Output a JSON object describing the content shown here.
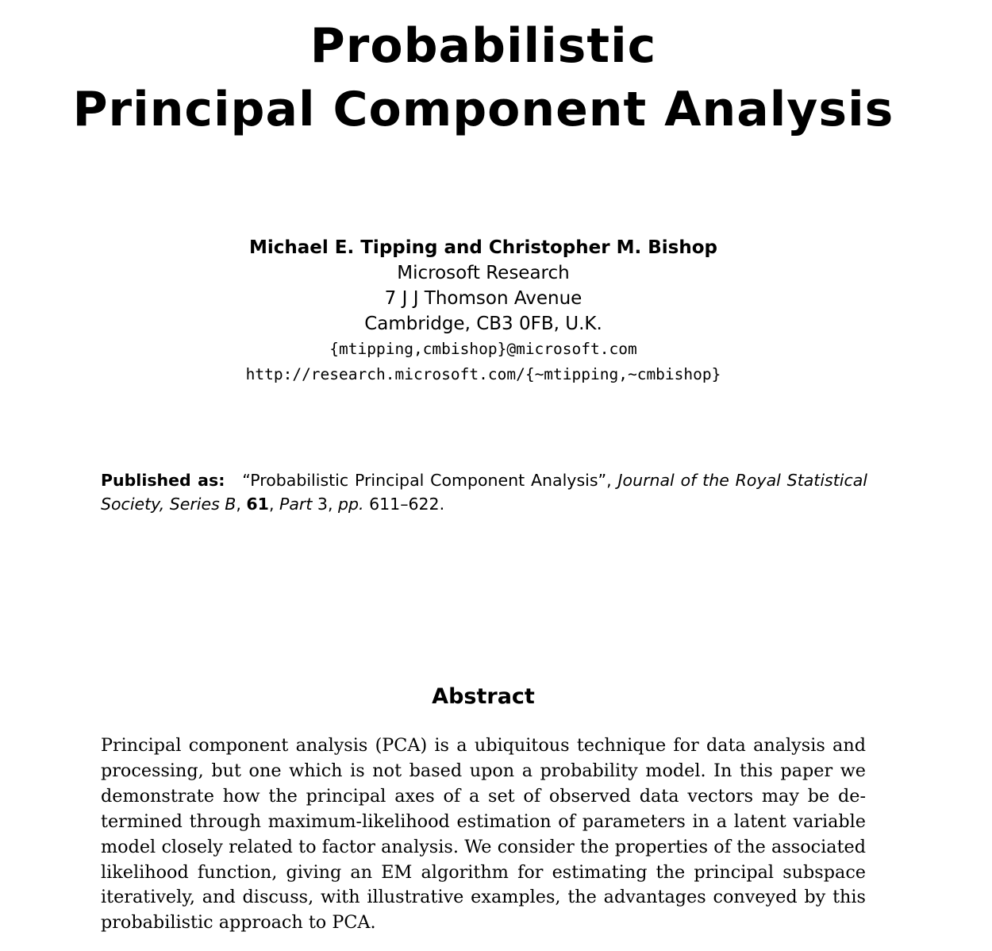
{
  "title": {
    "line1": "Probabilistic",
    "line2": "Principal Component Analysis"
  },
  "authors": {
    "names": "Michael E. Tipping and Christopher M. Bishop",
    "affiliation": "Microsoft Research",
    "street": "7 J J Thomson Avenue",
    "city": "Cambridge, CB3 0FB, U.K.",
    "email": "{mtipping,cmbishop}@microsoft.com",
    "url": "http://research.microsoft.com/{∼mtipping,∼cmbishop}"
  },
  "publication": {
    "lead": "Published as:",
    "article_title": "“Probabilistic Principal Component Analysis”,",
    "journal": "Journal of the Royal Statistical Society, Series B",
    "volume": "61",
    "part_label": "Part",
    "part": "3,",
    "pages_label": "pp.",
    "pages": "611–622."
  },
  "abstract": {
    "heading": "Abstract",
    "lines": [
      "Principal component analysis (PCA) is a ubiquitous technique for data analysis and",
      "processing, but one which is not based upon a probability model. In this paper we",
      "demonstrate how the principal axes of a set of observed data vectors may be de-",
      "termined through maximum-likelihood estimation of parameters in a latent variable",
      "model closely related to factor analysis. We consider the properties of the associated",
      "likelihood function, giving an EM algorithm for estimating the principal subspace",
      "iteratively, and discuss, with illustrative examples, the advantages conveyed by this",
      "probabilistic approach to PCA."
    ]
  }
}
